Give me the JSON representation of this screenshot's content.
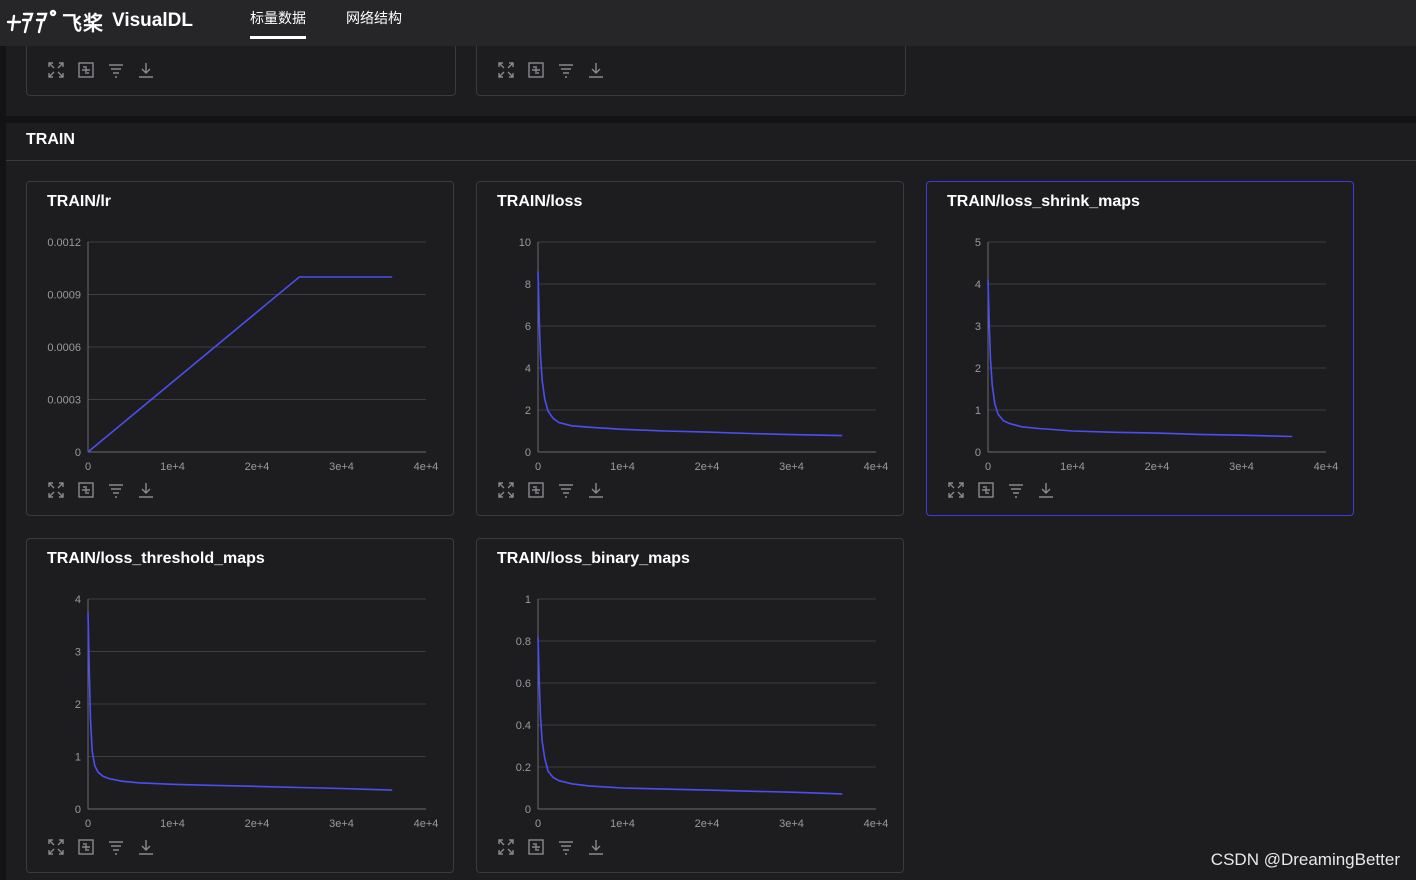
{
  "nav": {
    "brand_cn": "飞桨",
    "brand_name": "VisualDL",
    "tabs": [
      {
        "label": "标量数据",
        "active": true
      },
      {
        "label": "网络结构",
        "active": false
      }
    ]
  },
  "section": {
    "title": "TRAIN"
  },
  "tools": [
    "expand-icon",
    "fit-icon",
    "filter-icon",
    "download-icon"
  ],
  "colors": {
    "line": "#4b4ff2",
    "accent": "#3b3fd8"
  },
  "watermark": "CSDN @DreamingBetter",
  "chart_data": [
    {
      "title": "TRAIN/lr",
      "type": "line",
      "x_ticks": [
        "0",
        "1e+4",
        "2e+4",
        "3e+4",
        "4e+4"
      ],
      "y_ticks": [
        "0",
        "0.0003",
        "0.0006",
        "0.0009",
        "0.0012"
      ],
      "xlim": [
        0,
        40000
      ],
      "ylim": [
        0,
        0.0012
      ],
      "x": [
        0,
        25000,
        36000
      ],
      "y": [
        0,
        0.001,
        0.001
      ]
    },
    {
      "title": "TRAIN/loss",
      "type": "line",
      "x_ticks": [
        "0",
        "1e+4",
        "2e+4",
        "3e+4",
        "4e+4"
      ],
      "y_ticks": [
        "0",
        "2",
        "4",
        "6",
        "8",
        "10"
      ],
      "xlim": [
        0,
        40000
      ],
      "ylim": [
        0,
        10
      ],
      "x": [
        0,
        150,
        300,
        500,
        800,
        1200,
        1800,
        2500,
        4000,
        6000,
        10000,
        15000,
        20000,
        25000,
        30000,
        36000
      ],
      "y": [
        8.6,
        6.2,
        4.6,
        3.4,
        2.5,
        1.95,
        1.6,
        1.4,
        1.25,
        1.18,
        1.08,
        1.0,
        0.95,
        0.88,
        0.83,
        0.78
      ]
    },
    {
      "title": "TRAIN/loss_shrink_maps",
      "type": "line",
      "x_ticks": [
        "0",
        "1e+4",
        "2e+4",
        "3e+4",
        "4e+4"
      ],
      "y_ticks": [
        "0",
        "1",
        "2",
        "3",
        "4",
        "5"
      ],
      "xlim": [
        0,
        40000
      ],
      "ylim": [
        0,
        5
      ],
      "x": [
        0,
        150,
        300,
        500,
        800,
        1200,
        1800,
        2500,
        4000,
        6000,
        10000,
        15000,
        20000,
        25000,
        30000,
        36000
      ],
      "y": [
        4.1,
        3.0,
        2.2,
        1.6,
        1.15,
        0.9,
        0.75,
        0.68,
        0.6,
        0.56,
        0.5,
        0.47,
        0.45,
        0.42,
        0.4,
        0.37
      ]
    },
    {
      "title": "TRAIN/loss_threshold_maps",
      "type": "line",
      "x_ticks": [
        "0",
        "1e+4",
        "2e+4",
        "3e+4",
        "4e+4"
      ],
      "y_ticks": [
        "0",
        "1",
        "2",
        "3",
        "4"
      ],
      "xlim": [
        0,
        40000
      ],
      "ylim": [
        0,
        4
      ],
      "x": [
        0,
        150,
        300,
        500,
        800,
        1200,
        1800,
        2500,
        4000,
        6000,
        10000,
        15000,
        20000,
        25000,
        30000,
        36000
      ],
      "y": [
        3.75,
        2.6,
        1.7,
        1.1,
        0.82,
        0.7,
        0.62,
        0.58,
        0.53,
        0.5,
        0.47,
        0.45,
        0.43,
        0.41,
        0.39,
        0.36
      ]
    },
    {
      "title": "TRAIN/loss_binary_maps",
      "type": "line",
      "x_ticks": [
        "0",
        "1e+4",
        "2e+4",
        "3e+4",
        "4e+4"
      ],
      "y_ticks": [
        "0",
        "0.2",
        "0.4",
        "0.6",
        "0.8",
        "1"
      ],
      "xlim": [
        0,
        40000
      ],
      "ylim": [
        0,
        1
      ],
      "x": [
        0,
        150,
        300,
        500,
        800,
        1200,
        1800,
        2500,
        4000,
        6000,
        10000,
        15000,
        20000,
        25000,
        30000,
        36000
      ],
      "y": [
        0.82,
        0.6,
        0.44,
        0.32,
        0.24,
        0.18,
        0.15,
        0.135,
        0.12,
        0.11,
        0.1,
        0.095,
        0.09,
        0.085,
        0.08,
        0.072
      ]
    }
  ]
}
